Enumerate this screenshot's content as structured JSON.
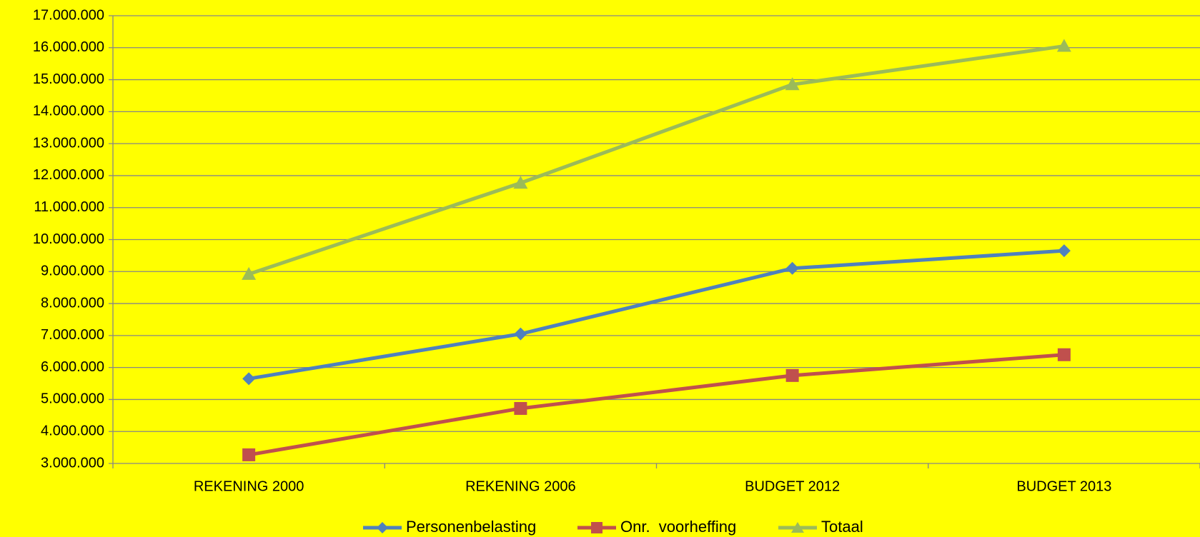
{
  "chart_data": {
    "type": "line",
    "categories": [
      "REKENING 2000",
      "REKENING 2006",
      "BUDGET 2012",
      "BUDGET 2013"
    ],
    "series": [
      {
        "name": "Personenbelasting",
        "color": "#4f81bd",
        "marker": "diamond",
        "values": [
          5650000,
          7050000,
          9100000,
          9650000
        ]
      },
      {
        "name": "Onr.  voorheffing",
        "color": "#c0504d",
        "marker": "square",
        "values": [
          3270000,
          4720000,
          5750000,
          6400000
        ]
      },
      {
        "name": "Totaal",
        "color": "#9bbb59",
        "marker": "triangle",
        "values": [
          8920000,
          11770000,
          14850000,
          16050000
        ]
      }
    ],
    "ylim": [
      3000000,
      17000000
    ],
    "yticks": [
      {
        "value": 3000000,
        "label": "3.000.000"
      },
      {
        "value": 4000000,
        "label": "4.000.000"
      },
      {
        "value": 5000000,
        "label": "5.000.000"
      },
      {
        "value": 6000000,
        "label": "6.000.000"
      },
      {
        "value": 7000000,
        "label": "7.000.000"
      },
      {
        "value": 8000000,
        "label": "8.000.000"
      },
      {
        "value": 9000000,
        "label": "9.000.000"
      },
      {
        "value": 10000000,
        "label": "10.000.000"
      },
      {
        "value": 11000000,
        "label": "11.000.000"
      },
      {
        "value": 12000000,
        "label": "12.000.000"
      },
      {
        "value": 13000000,
        "label": "13.000.000"
      },
      {
        "value": 14000000,
        "label": "14.000.000"
      },
      {
        "value": 15000000,
        "label": "15.000.000"
      },
      {
        "value": 16000000,
        "label": "16.000.000"
      },
      {
        "value": 17000000,
        "label": "17.000.000"
      }
    ],
    "grid": true,
    "legend": "bottom",
    "background": "#ffff00"
  }
}
